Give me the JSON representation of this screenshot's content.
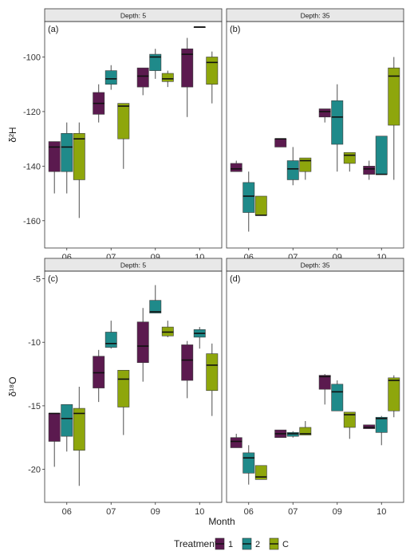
{
  "x_axis_title": "Month",
  "legend": {
    "title": "Treatment",
    "items": [
      {
        "label": "1",
        "color": "#5b1a4f"
      },
      {
        "label": "2",
        "color": "#1f8a8a"
      },
      {
        "label": "C",
        "color": "#8ea60c"
      }
    ]
  },
  "chart_data": [
    {
      "type": "box",
      "panel_label": "(a)",
      "strip": "Depth: 5",
      "ylabel": "δ²H",
      "ylim": [
        -170,
        -87
      ],
      "yticks": [
        -160,
        -140,
        -120,
        -100
      ],
      "categories": [
        "06",
        "07",
        "09",
        "10"
      ],
      "series": [
        {
          "name": "1",
          "boxes": [
            {
              "min": -150,
              "q1": -142,
              "median": -133,
              "q3": -131,
              "max": -131
            },
            {
              "min": -124,
              "q1": -121,
              "median": -117,
              "q3": -113,
              "max": -110
            },
            {
              "min": -114,
              "q1": -111,
              "median": -107,
              "q3": -104,
              "max": -104
            },
            {
              "min": -122,
              "q1": -111,
              "median": -99,
              "q3": -97,
              "max": -93
            }
          ]
        },
        {
          "name": "2",
          "boxes": [
            {
              "min": -150,
              "q1": -142,
              "median": -133,
              "q3": -128,
              "max": -124
            },
            {
              "min": -112,
              "q1": -110,
              "median": -108,
              "q3": -105,
              "max": -103
            },
            {
              "min": -108,
              "q1": -105,
              "median": -100,
              "q3": -99,
              "max": -97
            },
            {
              "min": -89,
              "q1": -89,
              "median": -89,
              "q3": -89,
              "max": -89
            }
          ]
        },
        {
          "name": "C",
          "boxes": [
            {
              "min": -159,
              "q1": -145,
              "median": -130,
              "q3": -128,
              "max": -124
            },
            {
              "min": -141,
              "q1": -130,
              "median": -118,
              "q3": -117,
              "max": -117
            },
            {
              "min": -111,
              "q1": -109,
              "median": -108,
              "q3": -106,
              "max": -105
            },
            {
              "min": -117,
              "q1": -110,
              "median": -102,
              "q3": -100,
              "max": -98
            }
          ]
        }
      ]
    },
    {
      "type": "box",
      "panel_label": "(b)",
      "strip": "Depth: 35",
      "ylabel": "",
      "ylim": [
        -170,
        -87
      ],
      "yticks": [
        -160,
        -140,
        -120,
        -100
      ],
      "categories": [
        "06",
        "07",
        "09",
        "10"
      ],
      "series": [
        {
          "name": "1",
          "boxes": [
            {
              "min": -142,
              "q1": -142,
              "median": -141,
              "q3": -139,
              "max": -138
            },
            {
              "min": -133,
              "q1": -133,
              "median": -130,
              "q3": -130,
              "max": -130
            },
            {
              "min": -124,
              "q1": -122,
              "median": -120,
              "q3": -119,
              "max": -119
            },
            {
              "min": -145,
              "q1": -143,
              "median": -141,
              "q3": -140,
              "max": -138
            }
          ]
        },
        {
          "name": "2",
          "boxes": [
            {
              "min": -164,
              "q1": -157,
              "median": -151,
              "q3": -146,
              "max": -142
            },
            {
              "min": -147,
              "q1": -145,
              "median": -141,
              "q3": -138,
              "max": -133
            },
            {
              "min": -142,
              "q1": -132,
              "median": -122,
              "q3": -116,
              "max": -110
            },
            {
              "min": -143,
              "q1": -143,
              "median": -143,
              "q3": -129,
              "max": -129
            }
          ]
        },
        {
          "name": "C",
          "boxes": [
            {
              "min": -158,
              "q1": -158,
              "median": -158,
              "q3": -151,
              "max": -151
            },
            {
              "min": -145,
              "q1": -142,
              "median": -138,
              "q3": -137,
              "max": -137
            },
            {
              "min": -142,
              "q1": -139,
              "median": -136,
              "q3": -135,
              "max": -135
            },
            {
              "min": -145,
              "q1": -125,
              "median": -107,
              "q3": -104,
              "max": -100
            }
          ]
        }
      ]
    },
    {
      "type": "box",
      "panel_label": "(c)",
      "strip": "Depth: 5",
      "ylabel": "δ¹⁸O",
      "ylim": [
        -22.6,
        -4.4
      ],
      "yticks": [
        -20,
        -15,
        -10,
        -5
      ],
      "categories": [
        "06",
        "07",
        "09",
        "10"
      ],
      "series": [
        {
          "name": "1",
          "boxes": [
            {
              "min": -19.8,
              "q1": -17.8,
              "median": -15.6,
              "q3": -15.6,
              "max": -15.6
            },
            {
              "min": -14.7,
              "q1": -13.6,
              "median": -12.4,
              "q3": -11.1,
              "max": -10.6
            },
            {
              "min": -13.1,
              "q1": -11.6,
              "median": -10.3,
              "q3": -8.4,
              "max": -7.3
            },
            {
              "min": -14.4,
              "q1": -13.0,
              "median": -11.4,
              "q3": -10.2,
              "max": -9.9
            }
          ]
        },
        {
          "name": "2",
          "boxes": [
            {
              "min": -18.6,
              "q1": -17.4,
              "median": -16.0,
              "q3": -14.9,
              "max": -14.9
            },
            {
              "min": -10.5,
              "q1": -10.4,
              "median": -10.1,
              "q3": -9.2,
              "max": -8.3
            },
            {
              "min": -7.7,
              "q1": -7.7,
              "median": -7.6,
              "q3": -6.7,
              "max": -5.5
            },
            {
              "min": -10.5,
              "q1": -9.6,
              "median": -9.3,
              "q3": -9.0,
              "max": -8.8
            }
          ]
        },
        {
          "name": "C",
          "boxes": [
            {
              "min": -21.3,
              "q1": -18.5,
              "median": -15.6,
              "q3": -15.2,
              "max": -13.5
            },
            {
              "min": -17.3,
              "q1": -15.1,
              "median": -12.9,
              "q3": -12.2,
              "max": -12.2
            },
            {
              "min": -9.6,
              "q1": -9.5,
              "median": -9.2,
              "q3": -8.8,
              "max": -8.3
            },
            {
              "min": -15.8,
              "q1": -13.8,
              "median": -11.8,
              "q3": -10.9,
              "max": -10.1
            }
          ]
        }
      ]
    },
    {
      "type": "box",
      "panel_label": "(d)",
      "strip": "Depth: 35",
      "ylabel": "",
      "ylim": [
        -22.6,
        -4.4
      ],
      "yticks": [
        -20,
        -15,
        -10,
        -5
      ],
      "categories": [
        "06",
        "07",
        "09",
        "10"
      ],
      "series": [
        {
          "name": "1",
          "boxes": [
            {
              "min": -18.3,
              "q1": -18.3,
              "median": -17.8,
              "q3": -17.5,
              "max": -17.2
            },
            {
              "min": -17.5,
              "q1": -17.5,
              "median": -17.2,
              "q3": -16.9,
              "max": -16.9
            },
            {
              "min": -14.9,
              "q1": -13.7,
              "median": -12.7,
              "q3": -12.6,
              "max": -12.5
            },
            {
              "min": -16.8,
              "q1": -16.8,
              "median": -16.7,
              "q3": -16.5,
              "max": -16.5
            }
          ]
        },
        {
          "name": "2",
          "boxes": [
            {
              "min": -21.2,
              "q1": -20.3,
              "median": -19.1,
              "q3": -18.7,
              "max": -18.1
            },
            {
              "min": -17.5,
              "q1": -17.4,
              "median": -17.2,
              "q3": -17.1,
              "max": -17.0
            },
            {
              "min": -15.4,
              "q1": -15.4,
              "median": -13.9,
              "q3": -13.3,
              "max": -13.0
            },
            {
              "min": -18.1,
              "q1": -17.1,
              "median": -16.0,
              "q3": -15.9,
              "max": -15.8
            }
          ]
        },
        {
          "name": "C",
          "boxes": [
            {
              "min": -20.8,
              "q1": -20.8,
              "median": -20.6,
              "q3": -19.7,
              "max": -19.7
            },
            {
              "min": -17.3,
              "q1": -17.3,
              "median": -17.2,
              "q3": -16.7,
              "max": -16.2
            },
            {
              "min": -17.6,
              "q1": -16.7,
              "median": -15.7,
              "q3": -15.5,
              "max": -15.5
            },
            {
              "min": -15.9,
              "q1": -15.4,
              "median": -13.0,
              "q3": -12.8,
              "max": -12.6
            }
          ]
        }
      ]
    }
  ]
}
